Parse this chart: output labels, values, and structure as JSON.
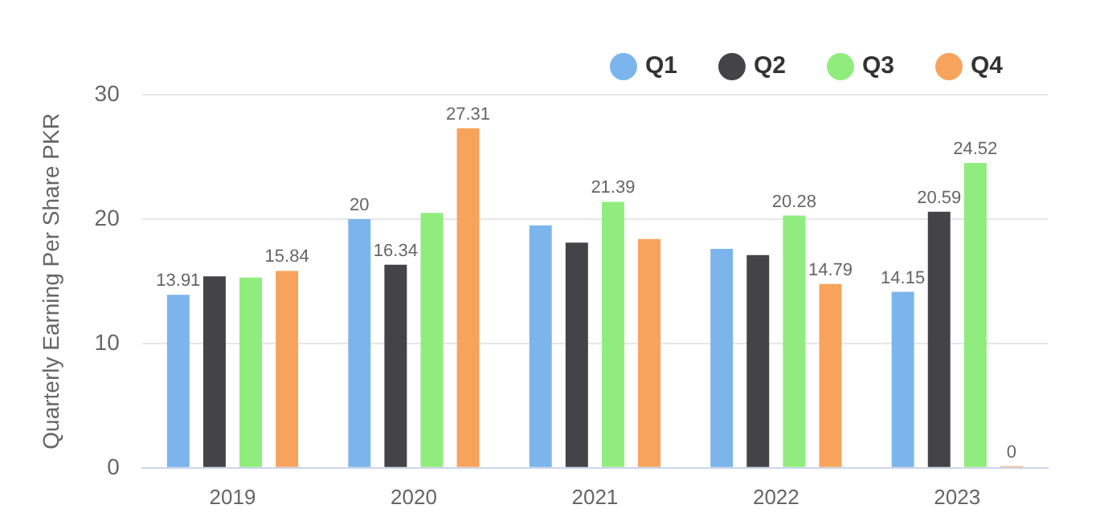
{
  "chart_data": {
    "type": "bar",
    "ylabel": "Quarterly Earning Per Share PKR",
    "categories": [
      "2019",
      "2020",
      "2021",
      "2022",
      "2023"
    ],
    "series": [
      {
        "name": "Q1",
        "color": "#7cb5ec",
        "values": [
          13.91,
          20,
          19.5,
          17.6,
          14.15
        ],
        "value_labels": [
          "13.91",
          "20",
          null,
          null,
          "14.15"
        ]
      },
      {
        "name": "Q2",
        "color": "#434348",
        "values": [
          15.4,
          16.34,
          18.1,
          17.1,
          20.59
        ],
        "value_labels": [
          null,
          "16.34",
          null,
          null,
          "20.59"
        ]
      },
      {
        "name": "Q3",
        "color": "#90ed7d",
        "values": [
          15.3,
          20.5,
          21.39,
          20.28,
          24.52
        ],
        "value_labels": [
          null,
          null,
          "21.39",
          "20.28",
          "24.52"
        ]
      },
      {
        "name": "Q4",
        "color": "#f7a35c",
        "values": [
          15.84,
          27.31,
          18.4,
          14.79,
          0
        ],
        "value_labels": [
          "15.84",
          "27.31",
          null,
          "14.79",
          "0"
        ]
      }
    ],
    "ylim": [
      0,
      30
    ],
    "yticks": [
      0,
      10,
      20,
      30
    ],
    "grid": "y",
    "legend": "top right"
  }
}
